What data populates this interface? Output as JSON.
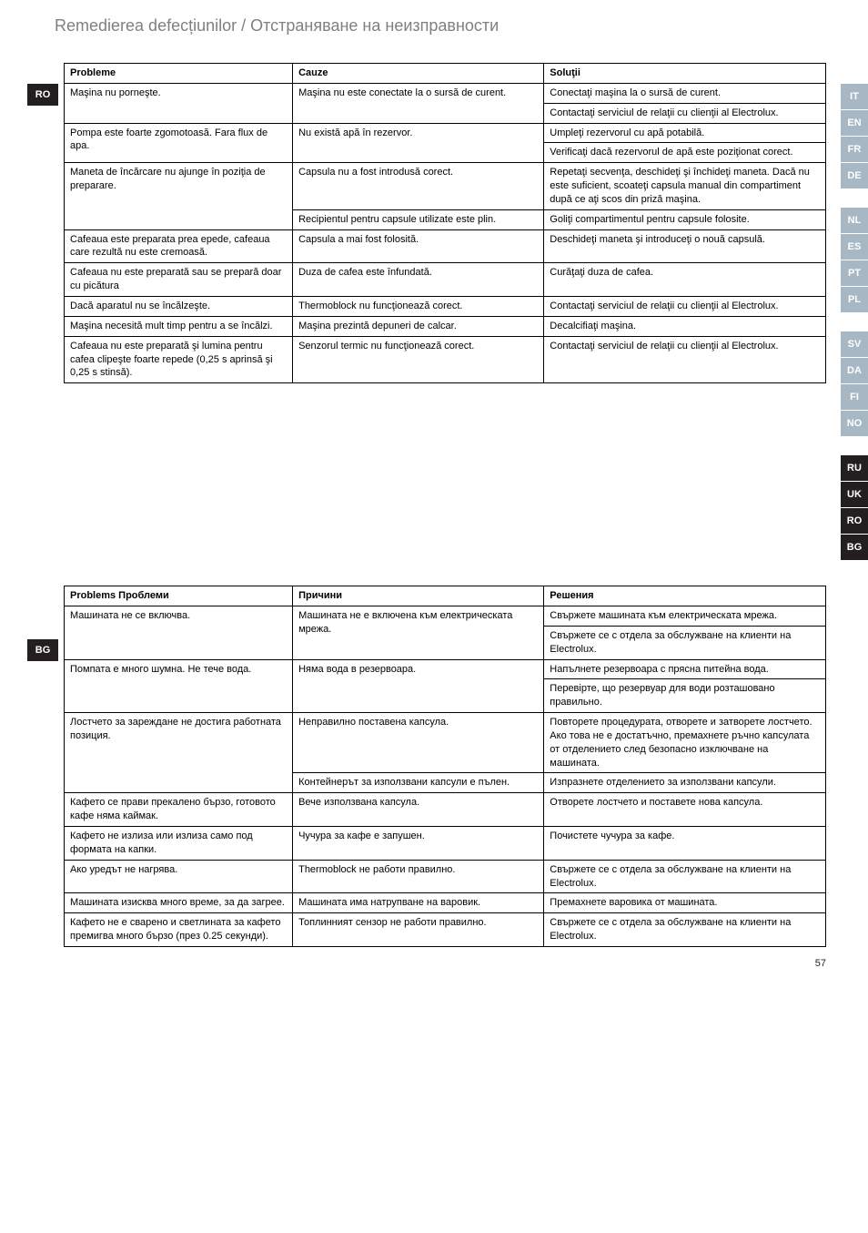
{
  "title": "Remedierea defecțiunilor  /  Отстраняване на неизправности",
  "left_badges": {
    "ro": "RO",
    "bg": "BG"
  },
  "right_tabs": {
    "group1": {
      "color_on": "#a8b7c4",
      "color_off": "#c7d2db",
      "items": [
        "IT",
        "EN",
        "FR",
        "DE"
      ]
    },
    "group2": {
      "color_on": "#a8b7c4",
      "color_off": "#c7d2db",
      "items": [
        "NL",
        "ES",
        "PT",
        "PL"
      ]
    },
    "group3": {
      "color_on": "#a8b7c4",
      "color_off": "#c7d2db",
      "items": [
        "SV",
        "DA",
        "FI",
        "NO"
      ]
    },
    "group4": {
      "color_on": "#231f20",
      "items": [
        "RU",
        "UK",
        "RO",
        "BG"
      ]
    }
  },
  "table_ro": {
    "headers": [
      "Probleme",
      "Cauze",
      "Soluţii"
    ],
    "rows": [
      {
        "c1": "Maşina nu porneşte.",
        "c1_rowspan": 2,
        "c2": "Maşina nu este conectate la o sursă de curent.",
        "c2_rowspan": 2,
        "c3": "Conectaţi maşina la o sursă de curent."
      },
      {
        "c3": "Contactaţi serviciul de relaţii cu clienţii al Electrolux."
      },
      {
        "c1": "Pompa este foarte zgomotoasă. Fara flux de apa.",
        "c1_rowspan": 2,
        "c2": "Nu există apă în rezervor.",
        "c2_rowspan": 2,
        "c3": "Umpleţi rezervorul cu apă potabilă."
      },
      {
        "c3": "Verificaţi dacă rezervorul de apă este poziţionat corect."
      },
      {
        "c1": "Maneta de încărcare nu ajunge în poziţia de preparare.",
        "c1_rowspan": 2,
        "c2": "Capsula nu a fost introdusă corect.",
        "c3": "Repetaţi secvenţa, deschideţi şi închideţi maneta. Dacă nu este suficient, scoateţi capsula manual din compartiment după ce aţi scos din priză maşina."
      },
      {
        "c2": "Recipientul pentru capsule utilizate este plin.",
        "c3": "Goliţi compartimentul pentru capsule folosite."
      },
      {
        "c1": "Cafeaua este preparata prea epede, cafeaua care rezultă nu este cremoasă.",
        "c2": "Capsula a mai fost folosită.",
        "c3": "Deschideţi maneta şi introduceţi o nouă capsulă."
      },
      {
        "c1": "Cafeaua nu este preparată sau se prepară doar cu picătura",
        "c2": "Duza de cafea este înfundată.",
        "c3": "Curăţaţi duza de cafea."
      },
      {
        "c1": "Dacă aparatul nu se încălzeşte.",
        "c2": "Thermoblock nu funcţionează corect.",
        "c3": "Contactaţi serviciul de relaţii cu clienţii al Electrolux."
      },
      {
        "c1": "Maşina necesită mult timp pentru a se încălzi.",
        "c2": "Maşina prezintă depuneri de calcar.",
        "c3": "Decalcifiaţi maşina."
      },
      {
        "c1": "Cafeaua nu este preparată şi lumina pentru cafea clipeşte foarte repede (0,25 s aprinsă şi 0,25 s stinsă).",
        "c2": "Senzorul termic nu funcţionează corect.",
        "c3": "Contactaţi serviciul de relaţii cu clienţii al Electrolux."
      }
    ]
  },
  "table_bg": {
    "headers": [
      "Problems Проблеми",
      "Причини",
      "Решения"
    ],
    "rows": [
      {
        "c1": "Машината не се включва.",
        "c1_rowspan": 2,
        "c2": "Машината не е включена към електрическата мрежа.",
        "c2_rowspan": 2,
        "c3": "Свържете машината към електрическата мрежа."
      },
      {
        "c3": "Свържете се с отдела за обслужване на клиенти на Electrolux."
      },
      {
        "c1": "Помпата е много шумна. Не тече вода.",
        "c1_rowspan": 2,
        "c2": "Няма вода в резервоара.",
        "c2_rowspan": 2,
        "c3": "Напълнете резервоара с прясна питейна вода."
      },
      {
        "c3": "Перевірте, що резервуар для води розташовано правильно."
      },
      {
        "c1": "Лостчето за зареждане не достига работната позиция.",
        "c1_rowspan": 2,
        "c2": "Неправилно поставена капсула.",
        "c3": "Повторете процедурата, отворете и затворете лостчето. Ако това не е достатъчно, премахнете ръчно капсулата от отделението след безопасно изключване на машината."
      },
      {
        "c2": "Контейнерът за използвани капсули е пълен.",
        "c3": "Изпразнете отделението за използвани капсули."
      },
      {
        "c1": "Кафето се прави прекалено бързо, готовото кафе няма каймак.",
        "c2": "Вече използвана капсула.",
        "c3": "Отворете лостчето и поставете нова капсула."
      },
      {
        "c1": "Кафето не излиза или излиза само под формата на капки.",
        "c2": "Чучура за кафе е запушен.",
        "c3": "Почистете чучура за кафе."
      },
      {
        "c1": "Ако уредът не нагрява.",
        "c2": "Thermoblock не работи правилно.",
        "c3": "Свържете се с отдела за обслужване на клиенти на Electrolux."
      },
      {
        "c1": "Машината изисква много време, за да загрее.",
        "c2": "Машината има натрупване на варовик.",
        "c3": "Премахнете варовика от машината."
      },
      {
        "c1": "Кафето не е сварено и светлината за кафето премигва много бързо (през 0.25 секунди).",
        "c2": "Топлинният сензор не работи правилно.",
        "c3": "Свържете се с отдела за обслужване на клиенти на Electrolux."
      }
    ]
  },
  "page_number": "57"
}
